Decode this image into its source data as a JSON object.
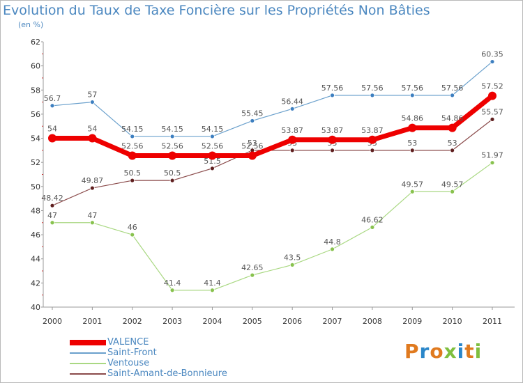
{
  "header": {
    "title": "Evolution du Taux de Taxe Foncière sur les Propriétés Non Bâties",
    "unit": "(en %)"
  },
  "logo": {
    "text": "Proxiti",
    "colors": [
      "#e07a1f",
      "#2a86c9",
      "#e07a1f",
      "#7fbf3f",
      "#2a86c9",
      "#e07a1f",
      "#7fbf3f"
    ]
  },
  "chart_data": {
    "type": "line",
    "title": "Evolution du Taux de Taxe Foncière sur les Propriétés Non Bâties",
    "ylabel": "(en %)",
    "xlabel": "",
    "x": [
      "2000",
      "2001",
      "2002",
      "2003",
      "2004",
      "2005",
      "2006",
      "2007",
      "2008",
      "2009",
      "2010",
      "2011"
    ],
    "ylim": [
      40,
      62
    ],
    "yticks": [
      40,
      42,
      44,
      46,
      48,
      50,
      52,
      54,
      56,
      58,
      60,
      62
    ],
    "grid": false,
    "legend": "bottom-left",
    "series": [
      {
        "name": "Saint-Front",
        "color": "#6aa0cc",
        "point": "#3d7fc0",
        "width": 1.2,
        "r": 3,
        "values": [
          56.7,
          57,
          54.15,
          54.15,
          54.15,
          55.45,
          56.44,
          57.56,
          57.56,
          57.56,
          57.56,
          60.35
        ],
        "labels": [
          "56.7",
          "57",
          "54.15",
          "54.15",
          "54.15",
          "55.45",
          "56.44",
          "57.56",
          "57.56",
          "57.56",
          "57.56",
          "60.35"
        ]
      },
      {
        "name": "Ventouse",
        "color": "#a9d882",
        "point": "#88c24e",
        "width": 1.2,
        "r": 3,
        "values": [
          47,
          47,
          46,
          41.4,
          41.4,
          42.65,
          43.5,
          44.8,
          46.62,
          49.57,
          49.57,
          51.97
        ],
        "labels": [
          "47",
          "47",
          "46",
          "41.4",
          "41.4",
          "42.65",
          "43.5",
          "44.8",
          "46.62",
          "49.57",
          "49.57",
          "51.97"
        ]
      },
      {
        "name": "Saint-Amant-de-Bonnieure",
        "color": "#8a4a4a",
        "point": "#5e1e1e",
        "width": 1.2,
        "r": 3,
        "values": [
          48.42,
          49.87,
          50.5,
          50.5,
          51.5,
          53,
          53,
          53,
          53,
          53,
          53,
          55.57
        ],
        "labels": [
          "48.42",
          "49.87",
          "50.5",
          "50.5",
          "51.5",
          "53",
          "53",
          "53",
          "53",
          "53",
          "53",
          "55.57"
        ]
      },
      {
        "name": "VALENCE",
        "color": "#ee0000",
        "point": "#ee0000",
        "width": 7,
        "r": 6,
        "values": [
          54,
          54,
          52.56,
          52.56,
          52.56,
          52.56,
          53.87,
          53.87,
          53.87,
          54.86,
          54.86,
          57.52
        ],
        "labels": [
          "54",
          "54",
          "52.56",
          "52.56",
          "52.56",
          "52.56",
          "53.87",
          "53.87",
          "53.87",
          "54.86",
          "54.86",
          "57.52"
        ]
      }
    ],
    "legend_order": [
      "VALENCE",
      "Saint-Front",
      "Ventouse",
      "Saint-Amant-de-Bonnieure"
    ]
  }
}
